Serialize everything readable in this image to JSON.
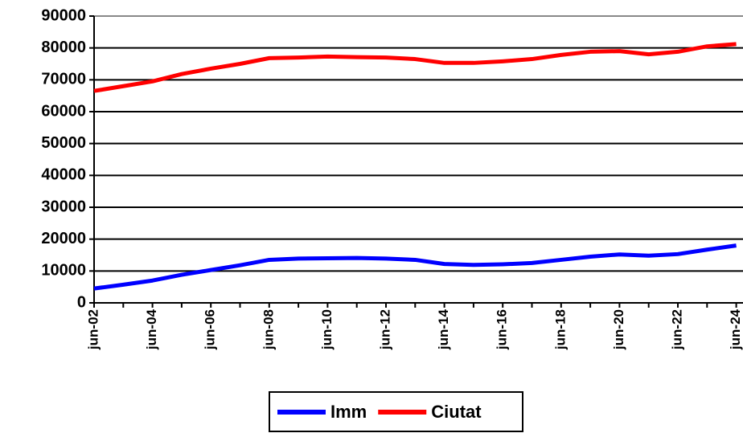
{
  "chart_data": {
    "type": "line",
    "categories": [
      "jun-02",
      null,
      "jun-04",
      null,
      "jun-06",
      null,
      "jun-08",
      null,
      "jun-10",
      null,
      "jun-12",
      null,
      "jun-14",
      null,
      "jun-16",
      null,
      "jun-18",
      null,
      "jun-20",
      null,
      "jun-22",
      null,
      "jun-24"
    ],
    "series": [
      {
        "name": "Imm",
        "color": "#0000ff",
        "values": [
          4500,
          5700,
          7000,
          8800,
          10300,
          11800,
          13500,
          13900,
          14000,
          14100,
          13900,
          13500,
          12200,
          11900,
          12100,
          12500,
          13500,
          14500,
          15200,
          14800,
          15300,
          16700,
          18000
        ]
      },
      {
        "name": "Ciutat",
        "color": "#ff0000",
        "values": [
          66500,
          68000,
          69500,
          71800,
          73500,
          75000,
          76800,
          77000,
          77300,
          77100,
          77000,
          76500,
          75300,
          75300,
          75800,
          76500,
          77800,
          78800,
          79000,
          78000,
          78800,
          80500,
          81200
        ]
      }
    ],
    "ylim": [
      0,
      90000
    ],
    "yticks": [
      0,
      10000,
      20000,
      30000,
      40000,
      50000,
      60000,
      70000,
      80000,
      90000
    ],
    "grid": true,
    "legend": "bottom"
  }
}
